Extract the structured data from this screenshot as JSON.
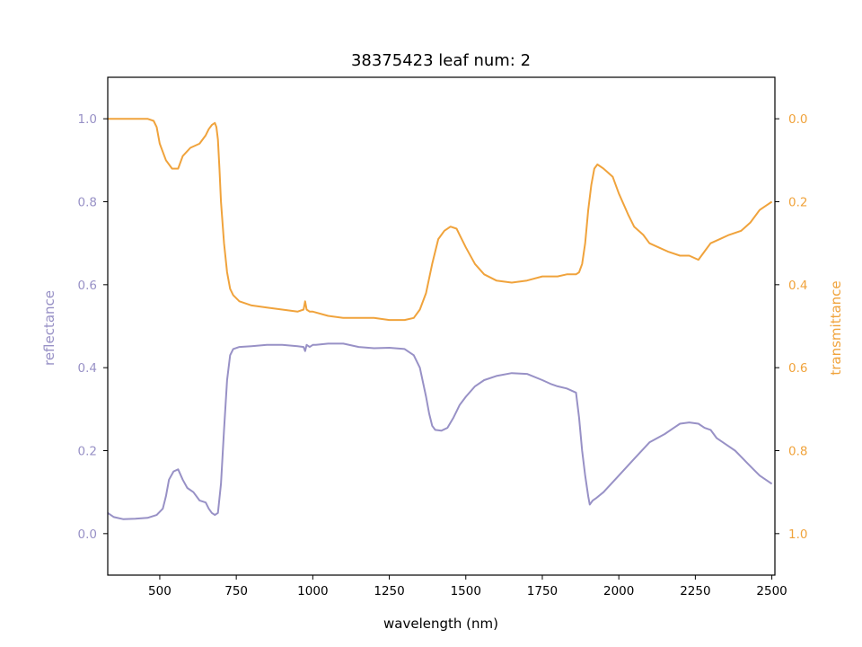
{
  "chart_data": {
    "type": "line",
    "title": "38375423 leaf num: 2",
    "xlabel": "wavelength (nm)",
    "ylabel_left": "reflectance",
    "ylabel_right": "transmittance",
    "xlim": [
      330,
      2510
    ],
    "ylim_left": [
      -0.1,
      1.1
    ],
    "ylim_right": [
      1.1,
      -0.1
    ],
    "right_axis_inverted": true,
    "grid": false,
    "x_ticks": [
      500,
      750,
      1000,
      1250,
      1500,
      1750,
      2000,
      2250,
      2500
    ],
    "x_tick_labels": [
      "500",
      "750",
      "1000",
      "1250",
      "1500",
      "1750",
      "2000",
      "2250",
      "2500"
    ],
    "left_ticks": [
      0.0,
      0.2,
      0.4,
      0.6,
      0.8,
      1.0
    ],
    "left_tick_labels": [
      "0.0",
      "0.2",
      "0.4",
      "0.6",
      "0.8",
      "1.0"
    ],
    "right_ticks": [
      0.0,
      0.2,
      0.4,
      0.6,
      0.8,
      1.0
    ],
    "right_tick_labels": [
      "0.0",
      "0.2",
      "0.4",
      "0.6",
      "0.8",
      "1.0"
    ],
    "colors": {
      "reflectance": "#9891c6",
      "transmittance": "#f0a33c",
      "axes": "#000000"
    },
    "series": [
      {
        "key": "reflectance",
        "axis": "left",
        "x": [
          330,
          350,
          380,
          420,
          460,
          490,
          510,
          520,
          530,
          545,
          560,
          575,
          590,
          610,
          630,
          650,
          660,
          670,
          680,
          690,
          700,
          710,
          720,
          730,
          740,
          760,
          800,
          850,
          900,
          950,
          970,
          975,
          980,
          990,
          1000,
          1010,
          1050,
          1100,
          1150,
          1200,
          1250,
          1300,
          1330,
          1350,
          1370,
          1380,
          1390,
          1400,
          1420,
          1440,
          1460,
          1480,
          1500,
          1530,
          1560,
          1600,
          1650,
          1700,
          1750,
          1780,
          1800,
          1830,
          1860,
          1870,
          1880,
          1890,
          1900,
          1905,
          1910,
          1915,
          1925,
          1950,
          2000,
          2050,
          2100,
          2150,
          2180,
          2200,
          2230,
          2260,
          2280,
          2300,
          2320,
          2350,
          2380,
          2400,
          2420,
          2440,
          2460,
          2480,
          2500
        ],
        "y": [
          0.05,
          0.04,
          0.035,
          0.036,
          0.038,
          0.045,
          0.06,
          0.09,
          0.13,
          0.15,
          0.155,
          0.13,
          0.11,
          0.1,
          0.08,
          0.075,
          0.06,
          0.05,
          0.045,
          0.05,
          0.12,
          0.25,
          0.37,
          0.43,
          0.445,
          0.45,
          0.452,
          0.455,
          0.455,
          0.452,
          0.45,
          0.44,
          0.455,
          0.45,
          0.455,
          0.455,
          0.458,
          0.458,
          0.45,
          0.447,
          0.448,
          0.445,
          0.43,
          0.4,
          0.33,
          0.29,
          0.26,
          0.25,
          0.248,
          0.255,
          0.28,
          0.31,
          0.33,
          0.355,
          0.37,
          0.38,
          0.387,
          0.385,
          0.37,
          0.36,
          0.355,
          0.35,
          0.34,
          0.28,
          0.2,
          0.14,
          0.09,
          0.07,
          0.075,
          0.08,
          0.085,
          0.1,
          0.14,
          0.18,
          0.22,
          0.24,
          0.255,
          0.265,
          0.268,
          0.265,
          0.255,
          0.25,
          0.23,
          0.215,
          0.2,
          0.185,
          0.17,
          0.155,
          0.14,
          0.13,
          0.12
        ]
      },
      {
        "key": "transmittance",
        "axis": "right",
        "x": [
          330,
          350,
          380,
          420,
          460,
          480,
          490,
          500,
          520,
          540,
          550,
          560,
          575,
          600,
          630,
          650,
          660,
          670,
          680,
          685,
          690,
          695,
          700,
          710,
          720,
          730,
          740,
          760,
          800,
          850,
          900,
          950,
          970,
          975,
          980,
          990,
          1000,
          1050,
          1100,
          1150,
          1200,
          1250,
          1300,
          1330,
          1350,
          1370,
          1390,
          1410,
          1430,
          1450,
          1470,
          1480,
          1500,
          1530,
          1560,
          1600,
          1650,
          1700,
          1750,
          1800,
          1830,
          1860,
          1870,
          1880,
          1890,
          1900,
          1910,
          1920,
          1930,
          1950,
          1980,
          2000,
          2030,
          2050,
          2080,
          2100,
          2130,
          2160,
          2200,
          2230,
          2260,
          2280,
          2300,
          2330,
          2360,
          2400,
          2430,
          2460,
          2480,
          2500
        ],
        "y": [
          0.0,
          0.0,
          0.0,
          0.0,
          0.0,
          0.005,
          0.02,
          0.06,
          0.1,
          0.12,
          0.12,
          0.12,
          0.09,
          0.07,
          0.06,
          0.04,
          0.025,
          0.015,
          0.01,
          0.02,
          0.05,
          0.12,
          0.2,
          0.3,
          0.37,
          0.41,
          0.425,
          0.44,
          0.45,
          0.455,
          0.46,
          0.465,
          0.46,
          0.44,
          0.46,
          0.465,
          0.465,
          0.475,
          0.48,
          0.48,
          0.48,
          0.485,
          0.485,
          0.48,
          0.46,
          0.42,
          0.35,
          0.29,
          0.27,
          0.26,
          0.265,
          0.28,
          0.31,
          0.35,
          0.375,
          0.39,
          0.395,
          0.39,
          0.38,
          0.38,
          0.375,
          0.375,
          0.37,
          0.35,
          0.3,
          0.22,
          0.16,
          0.12,
          0.11,
          0.12,
          0.14,
          0.18,
          0.23,
          0.26,
          0.28,
          0.3,
          0.31,
          0.32,
          0.33,
          0.33,
          0.34,
          0.32,
          0.3,
          0.29,
          0.28,
          0.27,
          0.25,
          0.22,
          0.21,
          0.2
        ]
      }
    ]
  }
}
